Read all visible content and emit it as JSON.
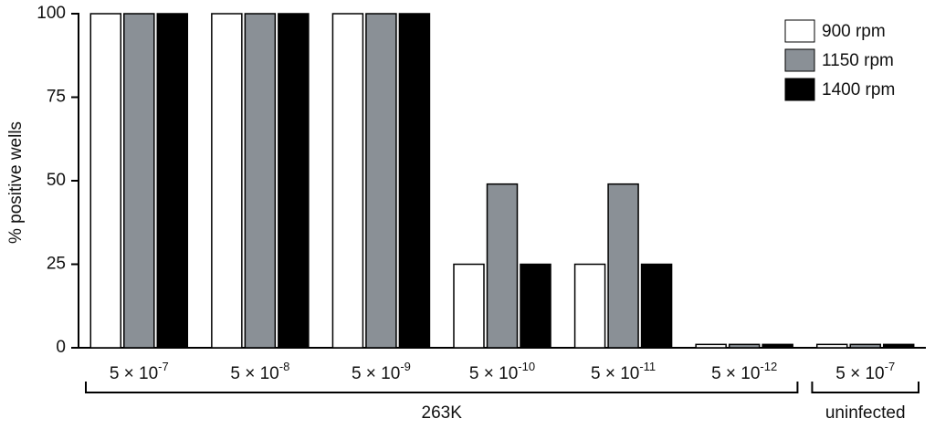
{
  "chart_data": {
    "type": "bar",
    "y_label": "% positive wells",
    "categories": [
      {
        "text": "5 × 10",
        "sup": "-7"
      },
      {
        "text": "5 × 10",
        "sup": "-8"
      },
      {
        "text": "5 × 10",
        "sup": "-9"
      },
      {
        "text": "5 × 10",
        "sup": "-10"
      },
      {
        "text": "5 × 10",
        "sup": "-11"
      },
      {
        "text": "5 × 10",
        "sup": "-12"
      },
      {
        "text": "5 × 10",
        "sup": "-7"
      }
    ],
    "category_groups": [
      "263K",
      "263K",
      "263K",
      "263K",
      "263K",
      "263K",
      "uninfected"
    ],
    "series": [
      {
        "name": "900 rpm",
        "color": "#ffffff",
        "values": [
          100,
          100,
          100,
          25,
          25,
          1,
          1
        ]
      },
      {
        "name": "1150 rpm",
        "color": "#8a9096",
        "values": [
          100,
          100,
          100,
          49,
          49,
          1,
          1
        ]
      },
      {
        "name": "1400 rpm",
        "color": "#000000",
        "values": [
          100,
          100,
          100,
          25,
          25,
          1,
          1
        ]
      }
    ],
    "ylim": [
      0,
      100
    ],
    "yticks": [
      0,
      25,
      50,
      75,
      100
    ],
    "legend": "top-right"
  }
}
